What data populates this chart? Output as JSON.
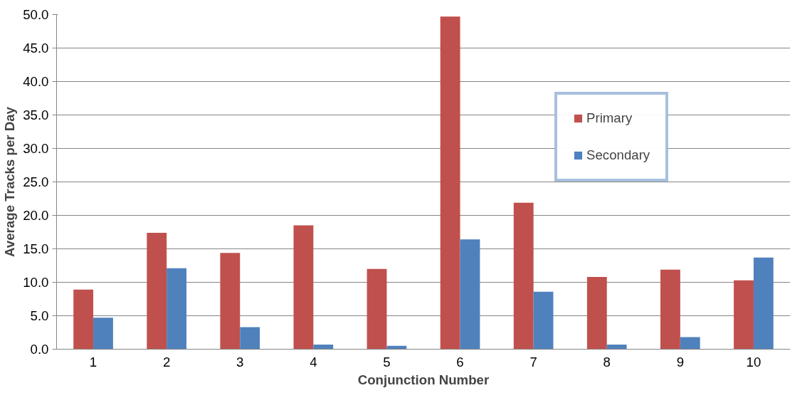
{
  "chart_data": {
    "type": "bar",
    "xlabel": "Conjunction Number",
    "ylabel": "Average Tracks per Day",
    "categories": [
      "1",
      "2",
      "3",
      "4",
      "5",
      "6",
      "7",
      "8",
      "9",
      "10"
    ],
    "series": [
      {
        "name": "Primary",
        "color": "#c0504d",
        "values": [
          8.9,
          17.4,
          14.4,
          18.5,
          12.0,
          49.7,
          21.9,
          10.8,
          11.9,
          10.3
        ]
      },
      {
        "name": "Secondary",
        "color": "#4f81bd",
        "values": [
          4.7,
          12.1,
          3.3,
          0.7,
          0.5,
          16.4,
          8.6,
          0.7,
          1.8,
          13.7
        ]
      }
    ],
    "ylim": [
      0,
      50
    ],
    "yticks": [
      {
        "value": 0,
        "label": "0.0"
      },
      {
        "value": 5,
        "label": "5.0"
      },
      {
        "value": 10,
        "label": "10.0"
      },
      {
        "value": 15,
        "label": "15.0"
      },
      {
        "value": 20,
        "label": "20.0"
      },
      {
        "value": 25,
        "label": "25.0"
      },
      {
        "value": 30,
        "label": "30.0"
      },
      {
        "value": 35,
        "label": "35.0"
      },
      {
        "value": 40,
        "label": "40.0"
      },
      {
        "value": 45,
        "label": "45.0"
      },
      {
        "value": 50,
        "label": "50.0"
      }
    ],
    "grid": "y",
    "legend": "top right"
  }
}
